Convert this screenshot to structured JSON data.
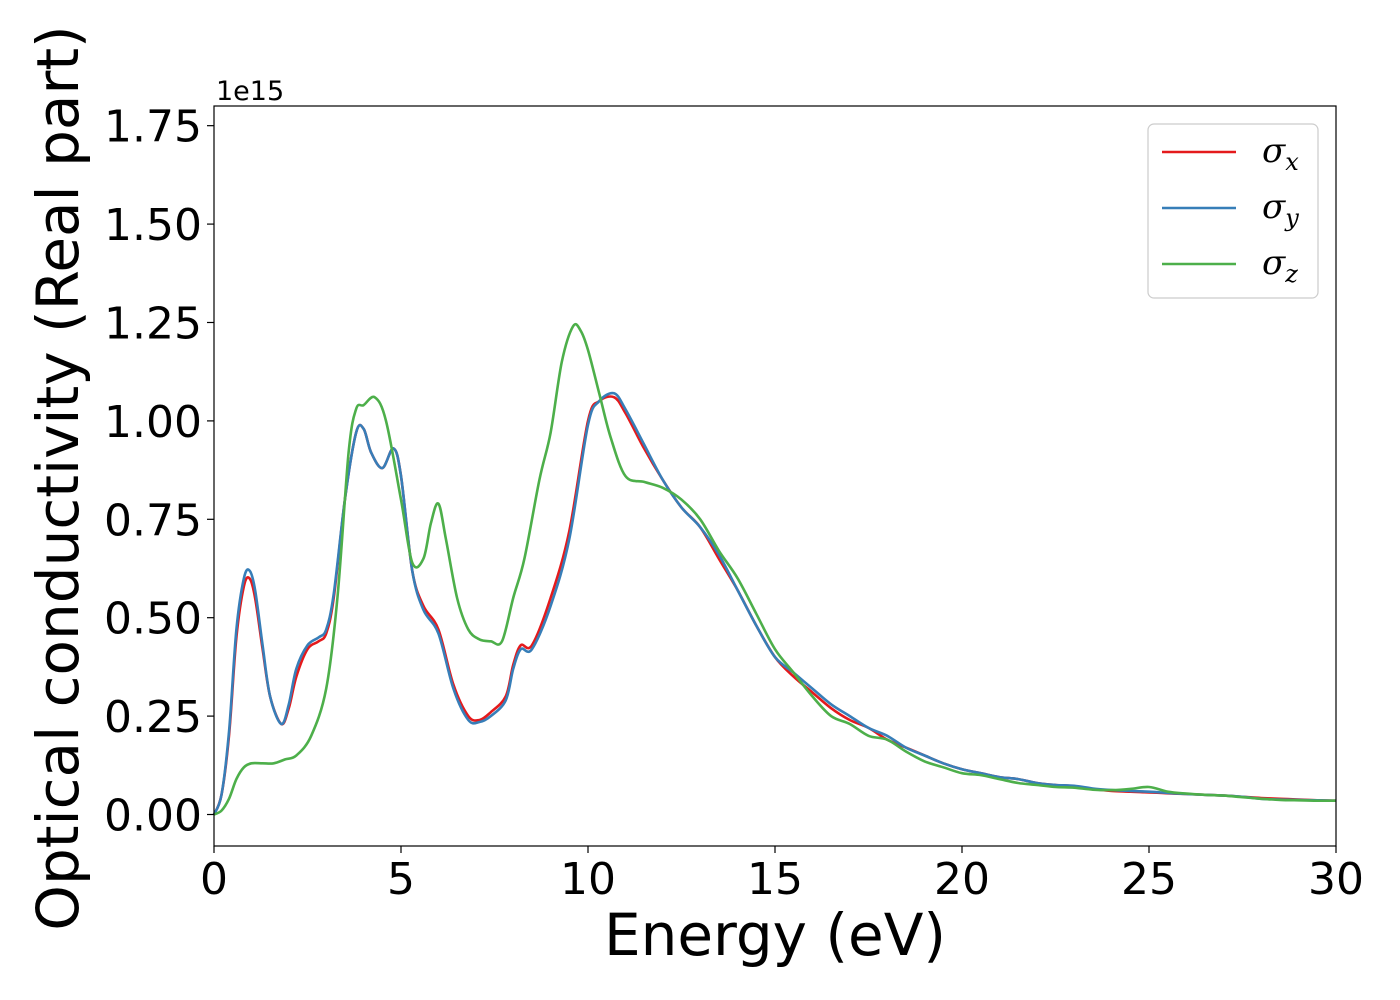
{
  "chart_data": {
    "type": "line",
    "title": "",
    "xlabel": "Energy (eV)",
    "ylabel": "Optical conductivity (Real part)",
    "y_offset_label": "1e15",
    "xlim": [
      0,
      30
    ],
    "ylim": [
      -0.08,
      1.8
    ],
    "x_ticks": [
      0,
      5,
      10,
      15,
      20,
      25,
      30
    ],
    "x_tick_labels": [
      "0",
      "5",
      "10",
      "15",
      "20",
      "25",
      "30"
    ],
    "y_ticks": [
      0.0,
      0.25,
      0.5,
      0.75,
      1.0,
      1.25,
      1.5,
      1.75
    ],
    "y_tick_labels": [
      "0.00",
      "0.25",
      "0.50",
      "0.75",
      "1.00",
      "1.25",
      "1.50",
      "1.75"
    ],
    "grid": false,
    "legend_position": "top-right",
    "series": [
      {
        "name": "σx",
        "symbol": "σ",
        "subscript": "x",
        "color": "#e41a1c",
        "x": [
          0,
          0.2,
          0.4,
          0.6,
          0.8,
          0.95,
          1.1,
          1.3,
          1.5,
          1.8,
          2.0,
          2.2,
          2.5,
          2.8,
          3.0,
          3.2,
          3.5,
          3.8,
          4.0,
          4.2,
          4.5,
          4.8,
          5.0,
          5.3,
          5.6,
          6.0,
          6.4,
          6.8,
          7.1,
          7.4,
          7.8,
          8.0,
          8.2,
          8.5,
          9.0,
          9.5,
          10.0,
          10.3,
          10.7,
          11.0,
          11.5,
          12.0,
          12.5,
          13.0,
          13.5,
          14.0,
          14.5,
          15.0,
          15.5,
          16.0,
          16.5,
          17.0,
          17.5,
          18.0,
          18.5,
          19.0,
          19.5,
          20.0,
          20.5,
          21.0,
          21.5,
          22.0,
          22.5,
          23.0,
          23.5,
          24.0,
          24.5,
          25.0,
          25.5,
          26.0,
          26.5,
          27.0,
          27.5,
          28.0,
          28.5,
          29.0,
          29.5,
          30.0
        ],
        "y": [
          0.0,
          0.05,
          0.2,
          0.45,
          0.58,
          0.6,
          0.55,
          0.42,
          0.3,
          0.23,
          0.27,
          0.35,
          0.42,
          0.44,
          0.46,
          0.55,
          0.8,
          0.97,
          0.98,
          0.92,
          0.88,
          0.93,
          0.86,
          0.62,
          0.53,
          0.47,
          0.33,
          0.25,
          0.24,
          0.26,
          0.3,
          0.38,
          0.43,
          0.43,
          0.55,
          0.72,
          1.0,
          1.05,
          1.06,
          1.02,
          0.93,
          0.85,
          0.78,
          0.73,
          0.65,
          0.57,
          0.48,
          0.4,
          0.35,
          0.31,
          0.27,
          0.24,
          0.22,
          0.19,
          0.17,
          0.15,
          0.13,
          0.115,
          0.105,
          0.095,
          0.09,
          0.08,
          0.075,
          0.072,
          0.065,
          0.06,
          0.058,
          0.056,
          0.054,
          0.052,
          0.05,
          0.048,
          0.045,
          0.042,
          0.04,
          0.038,
          0.036,
          0.035
        ]
      },
      {
        "name": "σy",
        "symbol": "σ",
        "subscript": "y",
        "color": "#377eb8",
        "x": [
          0,
          0.2,
          0.4,
          0.6,
          0.8,
          0.95,
          1.1,
          1.3,
          1.5,
          1.8,
          2.0,
          2.2,
          2.5,
          2.8,
          3.0,
          3.2,
          3.5,
          3.8,
          4.0,
          4.2,
          4.5,
          4.8,
          5.0,
          5.3,
          5.6,
          6.0,
          6.4,
          6.8,
          7.1,
          7.4,
          7.8,
          8.0,
          8.2,
          8.5,
          9.0,
          9.5,
          10.0,
          10.3,
          10.7,
          11.0,
          11.5,
          12.0,
          12.5,
          13.0,
          13.5,
          14.0,
          14.5,
          15.0,
          15.5,
          16.0,
          16.5,
          17.0,
          17.5,
          18.0,
          18.5,
          19.0,
          19.5,
          20.0,
          20.5,
          21.0,
          21.5,
          22.0,
          22.5,
          23.0,
          23.5,
          24.0,
          24.5,
          25.0,
          25.5,
          26.0,
          26.5,
          27.0,
          27.5,
          28.0,
          28.5,
          29.0,
          29.5,
          30.0
        ],
        "y": [
          0.0,
          0.05,
          0.21,
          0.47,
          0.6,
          0.62,
          0.57,
          0.43,
          0.3,
          0.23,
          0.28,
          0.37,
          0.43,
          0.45,
          0.47,
          0.56,
          0.8,
          0.97,
          0.98,
          0.92,
          0.88,
          0.93,
          0.86,
          0.62,
          0.52,
          0.46,
          0.32,
          0.24,
          0.235,
          0.25,
          0.29,
          0.37,
          0.42,
          0.42,
          0.53,
          0.7,
          0.99,
          1.05,
          1.07,
          1.03,
          0.94,
          0.85,
          0.78,
          0.73,
          0.66,
          0.57,
          0.48,
          0.4,
          0.36,
          0.32,
          0.28,
          0.25,
          0.22,
          0.2,
          0.17,
          0.15,
          0.13,
          0.115,
          0.105,
          0.095,
          0.09,
          0.08,
          0.075,
          0.073,
          0.066,
          0.062,
          0.06,
          0.058,
          0.055,
          0.052,
          0.05,
          0.048,
          0.045,
          0.04,
          0.038,
          0.037,
          0.036,
          0.035
        ]
      },
      {
        "name": "σz",
        "symbol": "σ",
        "subscript": "z",
        "color": "#4daf4a",
        "x": [
          0,
          0.2,
          0.4,
          0.6,
          0.8,
          1.0,
          1.3,
          1.6,
          1.9,
          2.2,
          2.6,
          3.0,
          3.3,
          3.6,
          3.8,
          4.0,
          4.3,
          4.6,
          5.0,
          5.3,
          5.6,
          5.8,
          6.0,
          6.2,
          6.5,
          6.8,
          7.1,
          7.4,
          7.7,
          8.0,
          8.3,
          8.7,
          9.0,
          9.3,
          9.6,
          9.8,
          10.0,
          10.3,
          10.6,
          11.0,
          11.5,
          12.0,
          12.5,
          13.0,
          13.5,
          14.0,
          14.5,
          15.0,
          15.5,
          16.0,
          16.5,
          17.0,
          17.5,
          18.0,
          18.5,
          19.0,
          19.5,
          20.0,
          20.5,
          21.0,
          21.5,
          22.0,
          22.5,
          23.0,
          23.5,
          24.0,
          24.5,
          25.0,
          25.5,
          26.0,
          26.5,
          27.0,
          27.5,
          28.0,
          28.5,
          29.0,
          29.5,
          30.0
        ],
        "y": [
          0.0,
          0.01,
          0.04,
          0.09,
          0.12,
          0.13,
          0.13,
          0.13,
          0.14,
          0.15,
          0.2,
          0.32,
          0.55,
          0.92,
          1.03,
          1.04,
          1.06,
          1.0,
          0.8,
          0.64,
          0.65,
          0.74,
          0.79,
          0.7,
          0.55,
          0.47,
          0.445,
          0.44,
          0.44,
          0.55,
          0.65,
          0.85,
          0.97,
          1.15,
          1.24,
          1.23,
          1.18,
          1.07,
          0.96,
          0.86,
          0.845,
          0.83,
          0.8,
          0.75,
          0.67,
          0.6,
          0.51,
          0.42,
          0.36,
          0.3,
          0.25,
          0.23,
          0.2,
          0.19,
          0.16,
          0.135,
          0.12,
          0.105,
          0.1,
          0.09,
          0.08,
          0.075,
          0.07,
          0.068,
          0.063,
          0.062,
          0.065,
          0.07,
          0.058,
          0.053,
          0.05,
          0.048,
          0.044,
          0.04,
          0.037,
          0.036,
          0.035,
          0.035
        ]
      }
    ]
  }
}
